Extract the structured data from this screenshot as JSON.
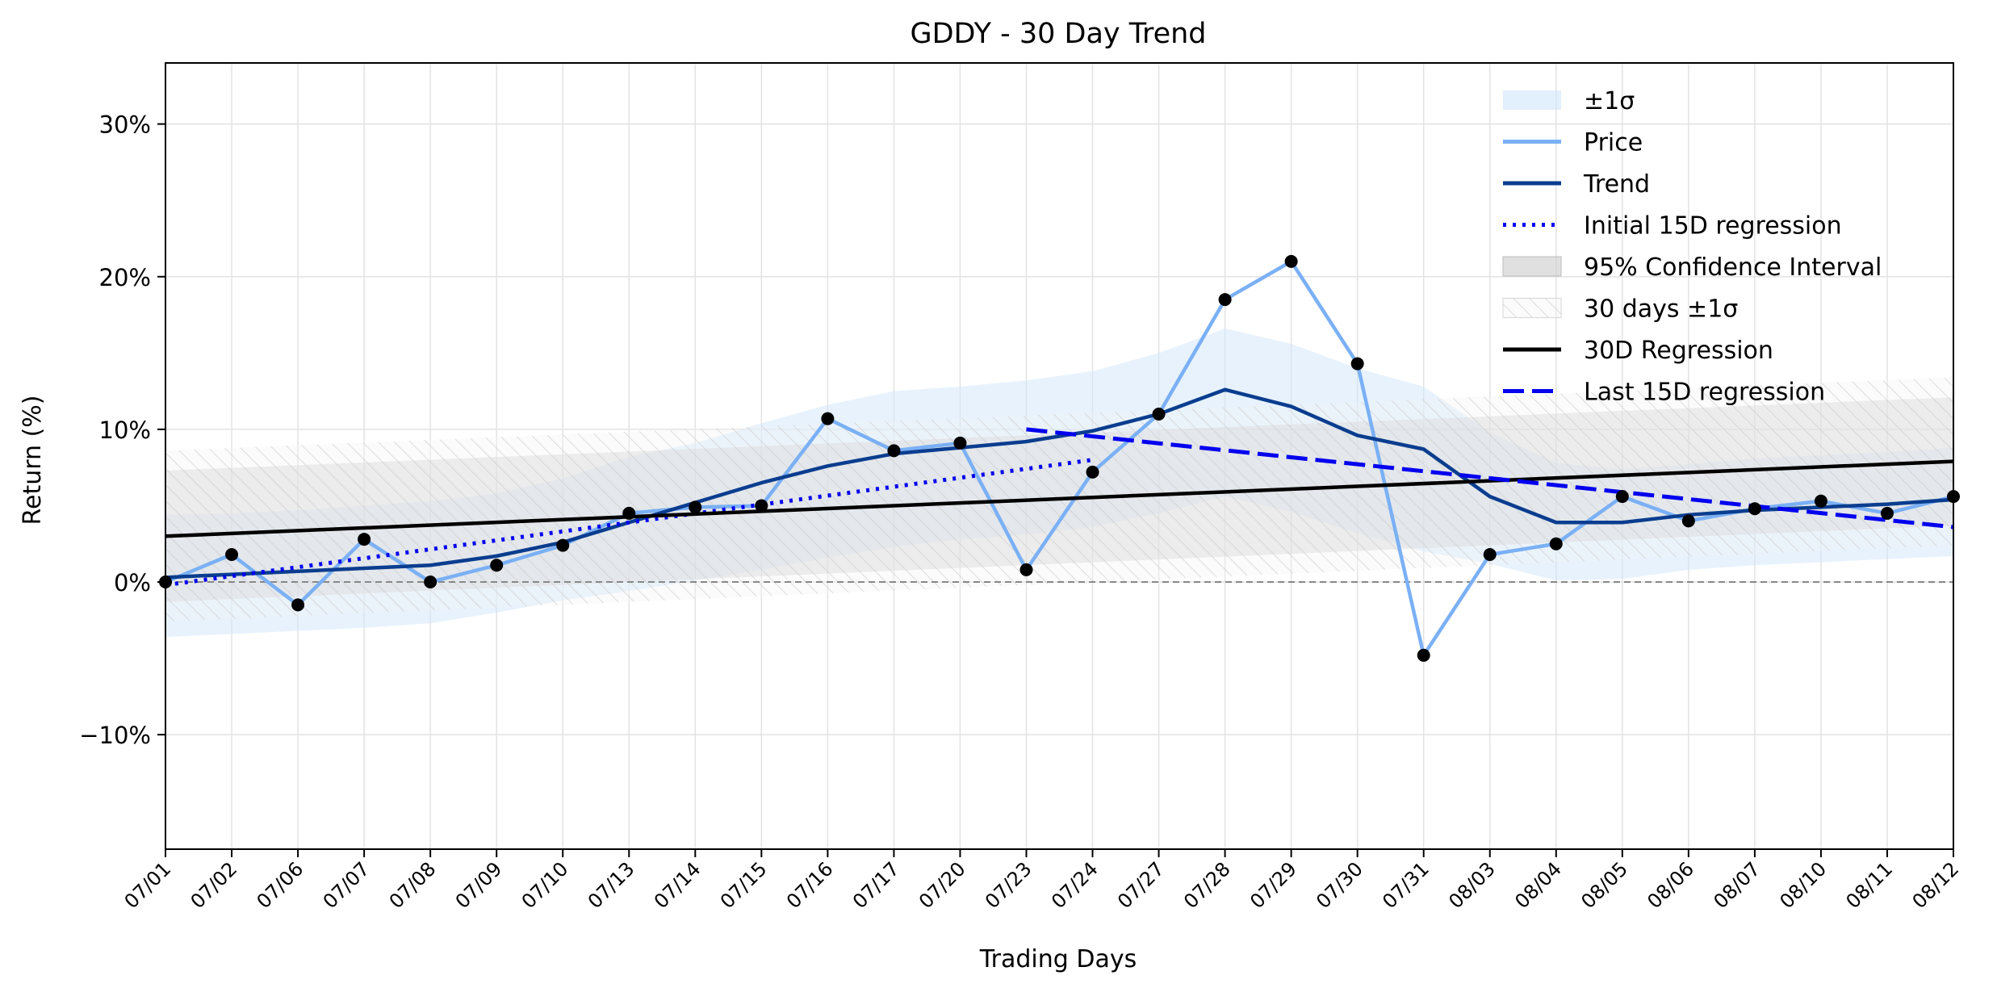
{
  "chart_data": {
    "type": "line",
    "title": "GDDY - 30 Day Trend",
    "xlabel": "Trading Days",
    "ylabel": "Return (%)",
    "ylim": [
      -17.5,
      34
    ],
    "yticks": [
      -10,
      0,
      10,
      20,
      30
    ],
    "ytick_labels": [
      "−10%",
      "0%",
      "10%",
      "20%",
      "30%"
    ],
    "grid": true,
    "legend_position": "top-right",
    "categories": [
      "07/01",
      "07/02",
      "07/06",
      "07/07",
      "07/08",
      "07/09",
      "07/10",
      "07/13",
      "07/14",
      "07/15",
      "07/16",
      "07/17",
      "07/20",
      "07/23",
      "07/24",
      "07/27",
      "07/28",
      "07/29",
      "07/30",
      "07/31",
      "08/03",
      "08/04",
      "08/05",
      "08/06",
      "08/07",
      "08/10",
      "08/11",
      "08/12"
    ],
    "series": [
      {
        "name": "Price",
        "color": "#7ab0f5",
        "values": [
          0.0,
          1.8,
          -1.5,
          2.8,
          0.0,
          1.1,
          2.4,
          4.5,
          4.9,
          5.0,
          10.7,
          8.6,
          9.1,
          0.8,
          7.2,
          11.0,
          18.5,
          21.0,
          14.3,
          -4.8,
          1.8,
          2.5,
          5.6,
          4.0,
          4.8,
          5.3,
          4.5,
          5.6
        ]
      },
      {
        "name": "Trend",
        "color": "#0a3d8f",
        "values": [
          0.3,
          0.5,
          0.7,
          0.9,
          1.1,
          1.7,
          2.6,
          3.9,
          5.2,
          6.5,
          7.6,
          8.4,
          8.8,
          9.2,
          9.9,
          11.0,
          12.6,
          11.5,
          9.6,
          8.7,
          5.6,
          3.9,
          3.9,
          4.4,
          4.7,
          4.9,
          5.1,
          5.4
        ]
      },
      {
        "name": "Initial 15D regression",
        "color": "#0000ee",
        "style": "dotted",
        "start": {
          "x": "07/01",
          "y": -0.2
        },
        "end": {
          "x": "07/24",
          "y": 8.0
        }
      },
      {
        "name": "30D Regression",
        "color": "#000000",
        "style": "solid",
        "start": {
          "x": "07/01",
          "y": 3.0
        },
        "end": {
          "x": "08/12",
          "y": 7.9
        }
      },
      {
        "name": "Last 15D regression",
        "color": "#0000ee",
        "style": "dashed",
        "start": {
          "x": "07/23",
          "y": 10.0
        },
        "end": {
          "x": "08/12",
          "y": 3.6
        }
      }
    ],
    "bands": [
      {
        "name": "±1σ",
        "color": "#cfe5fc",
        "lower": [
          -3.6,
          -3.4,
          -3.2,
          -3.0,
          -2.7,
          -2.0,
          -1.2,
          -0.6,
          0.1,
          0.8,
          1.6,
          2.3,
          2.8,
          3.1,
          3.6,
          4.5,
          5.6,
          4.6,
          3.2,
          2.0,
          1.2,
          0.1,
          0.2,
          0.8,
          1.1,
          1.3,
          1.5,
          1.7
        ],
        "upper": [
          4.4,
          4.5,
          4.7,
          5.0,
          5.3,
          5.8,
          6.8,
          8.2,
          9.1,
          10.4,
          11.6,
          12.5,
          12.8,
          13.2,
          13.8,
          15.0,
          16.6,
          15.6,
          14.0,
          12.8,
          9.8,
          7.8,
          7.4,
          7.7,
          8.1,
          8.3,
          8.5,
          8.8
        ]
      },
      {
        "name": "95% Confidence Interval",
        "color": "#cccccc",
        "lower_start": -1.3,
        "lower_end": 3.7,
        "upper_start": 7.3,
        "upper_end": 12.1
      },
      {
        "name": "30 days ±1σ",
        "color": "#e6e6e6",
        "hatch": true,
        "lower_start": -2.6,
        "lower_end": 2.4,
        "upper_start": 8.6,
        "upper_end": 13.4
      }
    ],
    "reference_line": {
      "y": 0,
      "style": "dashed",
      "color": "#888888"
    },
    "legend": [
      "±1σ",
      "Price",
      "Trend",
      "Initial 15D regression",
      "95% Confidence Interval",
      "30 days ±1σ",
      "30D Regression",
      "Last 15D regression"
    ]
  }
}
